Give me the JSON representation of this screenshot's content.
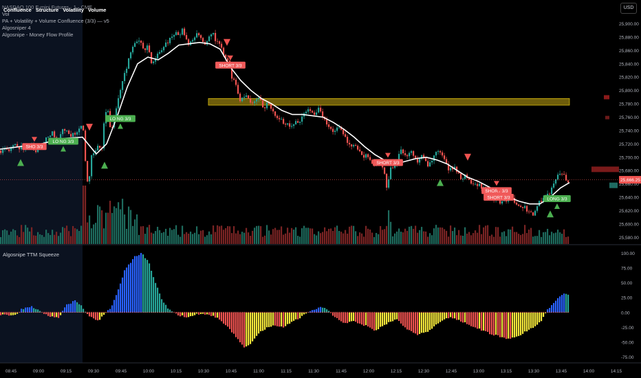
{
  "header": {
    "symbol_line": "NASDAQ 100 E-mini Futures · 1 · CME",
    "chips": [
      "Confluence",
      "Structure",
      "Volatility",
      "Volume"
    ],
    "indicators": [
      "Vol",
      "PA + Volatility + Volume Confluence (3/3) — v5",
      "Algosniper 4",
      "Algosnipe - Money Flow Profile"
    ],
    "currency": "USD"
  },
  "chart_data": [
    {
      "type": "candlestick",
      "title": "NASDAQ 100 E-mini Futures · 1 · CME",
      "ylim": [
        25570,
        25915
      ],
      "price_ticks": [
        "25,900.00",
        "25,880.00",
        "25,860.00",
        "25,840.00",
        "25,820.00",
        "25,800.00",
        "25,780.00",
        "25,760.00",
        "25,740.00",
        "25,720.00",
        "25,700.00",
        "25,680.00",
        "25,660.00",
        "25,640.00",
        "25,620.00",
        "25,600.00",
        "25,580.00"
      ],
      "price_tick_values": [
        25900,
        25880,
        25860,
        25840,
        25820,
        25800,
        25780,
        25760,
        25740,
        25720,
        25700,
        25680,
        25660,
        25640,
        25620,
        25600,
        25580
      ],
      "time_ticks": [
        "08:45",
        "09:00",
        "09:15",
        "09:30",
        "09:45",
        "10:00",
        "10:15",
        "10:30",
        "10:45",
        "11:00",
        "11:15",
        "11:30",
        "11:45",
        "12:00",
        "12:15",
        "12:30",
        "12:45",
        "13:00",
        "13:15",
        "13:30",
        "13:45",
        "14:00",
        "14:15"
      ],
      "close_path": [
        [
          0,
          25710
        ],
        [
          15,
          25712
        ],
        [
          25,
          25720
        ],
        [
          35,
          25712
        ],
        [
          45,
          25718
        ],
        [
          55,
          25710
        ],
        [
          65,
          25725
        ],
        [
          78,
          25738
        ],
        [
          85,
          25725
        ],
        [
          92,
          25740
        ],
        [
          102,
          25735
        ],
        [
          112,
          25732
        ],
        [
          118,
          25745
        ],
        [
          123,
          25742
        ],
        [
          128,
          25668
        ],
        [
          131,
          25660
        ],
        [
          134,
          25700
        ],
        [
          140,
          25705
        ],
        [
          146,
          25720
        ],
        [
          150,
          25710
        ],
        [
          154,
          25760
        ],
        [
          158,
          25772
        ],
        [
          163,
          25740
        ],
        [
          168,
          25760
        ],
        [
          173,
          25782
        ],
        [
          180,
          25815
        ],
        [
          186,
          25830
        ],
        [
          192,
          25860
        ],
        [
          198,
          25870
        ],
        [
          203,
          25880
        ],
        [
          210,
          25860
        ],
        [
          216,
          25865
        ],
        [
          222,
          25842
        ],
        [
          228,
          25848
        ],
        [
          236,
          25860
        ],
        [
          244,
          25872
        ],
        [
          252,
          25880
        ],
        [
          260,
          25885
        ],
        [
          268,
          25890
        ],
        [
          276,
          25870
        ],
        [
          284,
          25880
        ],
        [
          291,
          25885
        ],
        [
          298,
          25870
        ],
        [
          304,
          25878
        ],
        [
          310,
          25888
        ],
        [
          316,
          25872
        ],
        [
          322,
          25866
        ],
        [
          328,
          25850
        ],
        [
          334,
          25840
        ],
        [
          340,
          25815
        ],
        [
          345,
          25810
        ],
        [
          350,
          25785
        ],
        [
          356,
          25792
        ],
        [
          362,
          25790
        ],
        [
          370,
          25780
        ],
        [
          378,
          25786
        ],
        [
          386,
          25776
        ],
        [
          394,
          25780
        ],
        [
          402,
          25760
        ],
        [
          410,
          25755
        ],
        [
          418,
          25750
        ],
        [
          426,
          25745
        ],
        [
          434,
          25754
        ],
        [
          442,
          25760
        ],
        [
          450,
          25770
        ],
        [
          458,
          25764
        ],
        [
          466,
          25776
        ],
        [
          472,
          25758
        ],
        [
          480,
          25744
        ],
        [
          488,
          25736
        ],
        [
          496,
          25746
        ],
        [
          504,
          25730
        ],
        [
          512,
          25712
        ],
        [
          520,
          25718
        ],
        [
          528,
          25705
        ],
        [
          536,
          25700
        ],
        [
          544,
          25690
        ],
        [
          552,
          25696
        ],
        [
          560,
          25680
        ],
        [
          565,
          25650
        ],
        [
          570,
          25685
        ],
        [
          578,
          25692
        ],
        [
          585,
          25712
        ],
        [
          592,
          25700
        ],
        [
          600,
          25706
        ],
        [
          608,
          25692
        ],
        [
          616,
          25702
        ],
        [
          624,
          25690
        ],
        [
          632,
          25700
        ],
        [
          640,
          25708
        ],
        [
          648,
          25696
        ],
        [
          656,
          25680
        ],
        [
          664,
          25684
        ],
        [
          672,
          25670
        ],
        [
          680,
          25672
        ],
        [
          688,
          25662
        ],
        [
          696,
          25658
        ],
        [
          704,
          25654
        ],
        [
          712,
          25646
        ],
        [
          720,
          25640
        ],
        [
          728,
          25634
        ],
        [
          736,
          25636
        ],
        [
          744,
          25640
        ],
        [
          752,
          25630
        ],
        [
          760,
          25628
        ],
        [
          768,
          25620
        ],
        [
          776,
          25614
        ],
        [
          784,
          25632
        ],
        [
          792,
          25640
        ],
        [
          800,
          25645
        ],
        [
          806,
          25660
        ],
        [
          812,
          25672
        ],
        [
          818,
          25678
        ],
        [
          824,
          25670
        ],
        [
          828,
          25666
        ]
      ],
      "vwap_path": [
        [
          0,
          25712
        ],
        [
          30,
          25716
        ],
        [
          60,
          25720
        ],
        [
          90,
          25728
        ],
        [
          120,
          25730
        ],
        [
          140,
          25705
        ],
        [
          155,
          25720
        ],
        [
          170,
          25760
        ],
        [
          185,
          25805
        ],
        [
          200,
          25840
        ],
        [
          215,
          25850
        ],
        [
          230,
          25846
        ],
        [
          245,
          25856
        ],
        [
          260,
          25868
        ],
        [
          275,
          25870
        ],
        [
          290,
          25872
        ],
        [
          305,
          25870
        ],
        [
          320,
          25862
        ],
        [
          335,
          25835
        ],
        [
          350,
          25815
        ],
        [
          365,
          25800
        ],
        [
          380,
          25788
        ],
        [
          395,
          25780
        ],
        [
          410,
          25770
        ],
        [
          425,
          25764
        ],
        [
          440,
          25764
        ],
        [
          455,
          25762
        ],
        [
          470,
          25760
        ],
        [
          485,
          25752
        ],
        [
          500,
          25742
        ],
        [
          515,
          25730
        ],
        [
          530,
          25716
        ],
        [
          545,
          25704
        ],
        [
          560,
          25695
        ],
        [
          575,
          25690
        ],
        [
          590,
          25694
        ],
        [
          605,
          25698
        ],
        [
          620,
          25700
        ],
        [
          635,
          25696
        ],
        [
          650,
          25690
        ],
        [
          665,
          25680
        ],
        [
          680,
          25670
        ],
        [
          695,
          25664
        ],
        [
          710,
          25656
        ],
        [
          725,
          25648
        ],
        [
          740,
          25640
        ],
        [
          755,
          25634
        ],
        [
          770,
          25630
        ],
        [
          785,
          25630
        ],
        [
          800,
          25640
        ],
        [
          815,
          25654
        ],
        [
          828,
          25662
        ]
      ],
      "resistance_zone": [
        25778,
        25788
      ],
      "last_price_label": "25,666.25",
      "last_price": 25666.25,
      "signals": [
        {
          "label": "SHO 3/3",
          "type": "short",
          "x": 50,
          "y": 25716
        },
        {
          "label": "LO NG 3/3",
          "type": "long",
          "x": 92,
          "y": 25724
        },
        {
          "label": "LO NG 3/3",
          "type": "long",
          "x": 175,
          "y": 25758
        },
        {
          "label": "SHORT 3/3",
          "type": "short",
          "x": 335,
          "y": 25838
        },
        {
          "label": "SHORT 3/3",
          "type": "short",
          "x": 564,
          "y": 25692
        },
        {
          "label": "SHORT 3/3",
          "type": "short",
          "x": 722,
          "y": 25650
        },
        {
          "label": "SHORT 3/3",
          "type": "short",
          "x": 725,
          "y": 25640
        },
        {
          "label": "LONG 3/3",
          "type": "long",
          "x": 810,
          "y": 25638
        }
      ],
      "volume_note": "Volume histogram shown at bottom of price pane"
    },
    {
      "type": "bar",
      "title": "Algosnipe TTM Squeeze",
      "ylim": [
        -85,
        110
      ],
      "y_ticks": [
        "100.00",
        "75.00",
        "50.00",
        "25.00",
        "0.00",
        "-25.00",
        "-50.00",
        "-75.00"
      ],
      "y_tick_values": [
        100,
        75,
        50,
        25,
        0,
        -25,
        -50,
        -75
      ],
      "colors": {
        "rising_pos": "#2962ff",
        "falling_pos": "#26a69a",
        "falling_neg": "#ef5350",
        "rising_neg": "#f5e83a"
      }
    }
  ]
}
